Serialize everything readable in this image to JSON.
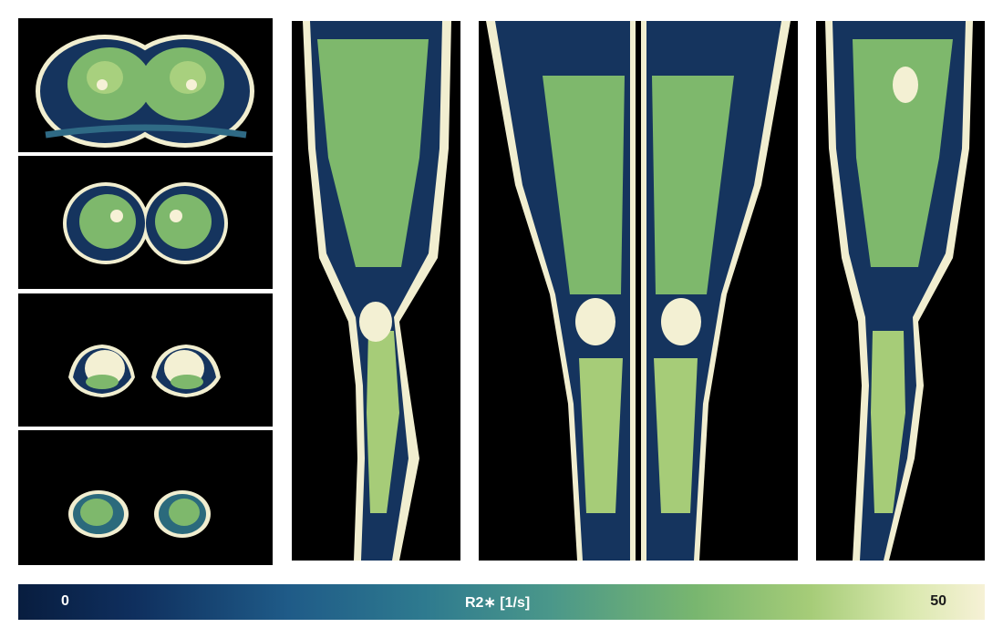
{
  "colorbar": {
    "min_label": "0",
    "title": "R2∗ [1/s]",
    "max_label": "50",
    "colors": [
      "#081d3f",
      "#1f5b88",
      "#4a978a",
      "#a6cc78",
      "#f6f1d6"
    ]
  }
}
